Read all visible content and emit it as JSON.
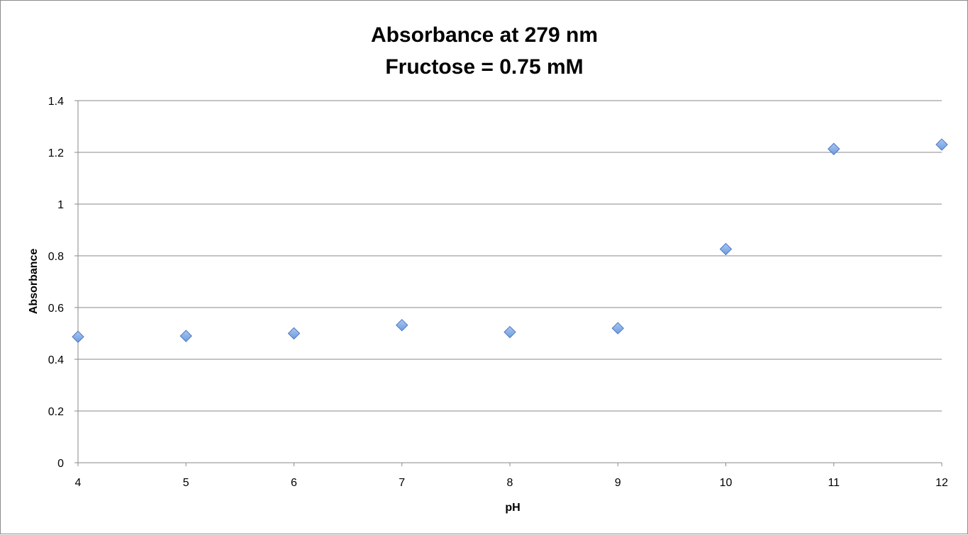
{
  "chart_data": {
    "type": "scatter",
    "title": [
      "Absorbance at 279 nm",
      "Fructose = 0.75 mM"
    ],
    "xlabel": "pH",
    "ylabel": "Absorbance",
    "xlim": [
      4,
      12
    ],
    "ylim": [
      0,
      1.4
    ],
    "xticks": [
      "4",
      "5",
      "6",
      "7",
      "8",
      "9",
      "10",
      "11",
      "12"
    ],
    "yticks": [
      "0",
      "0.2",
      "0.4",
      "0.6",
      "0.8",
      "1",
      "1.2",
      "1.4"
    ],
    "grid": true,
    "legend": "none",
    "marker": "diamond",
    "marker_color": "#6f9ce0",
    "series": [
      {
        "x": [
          4,
          5,
          6,
          7,
          8,
          9,
          10,
          11,
          12
        ],
        "y": [
          0.487,
          0.49,
          0.5,
          0.532,
          0.505,
          0.52,
          0.826,
          1.213,
          1.23
        ]
      }
    ]
  }
}
